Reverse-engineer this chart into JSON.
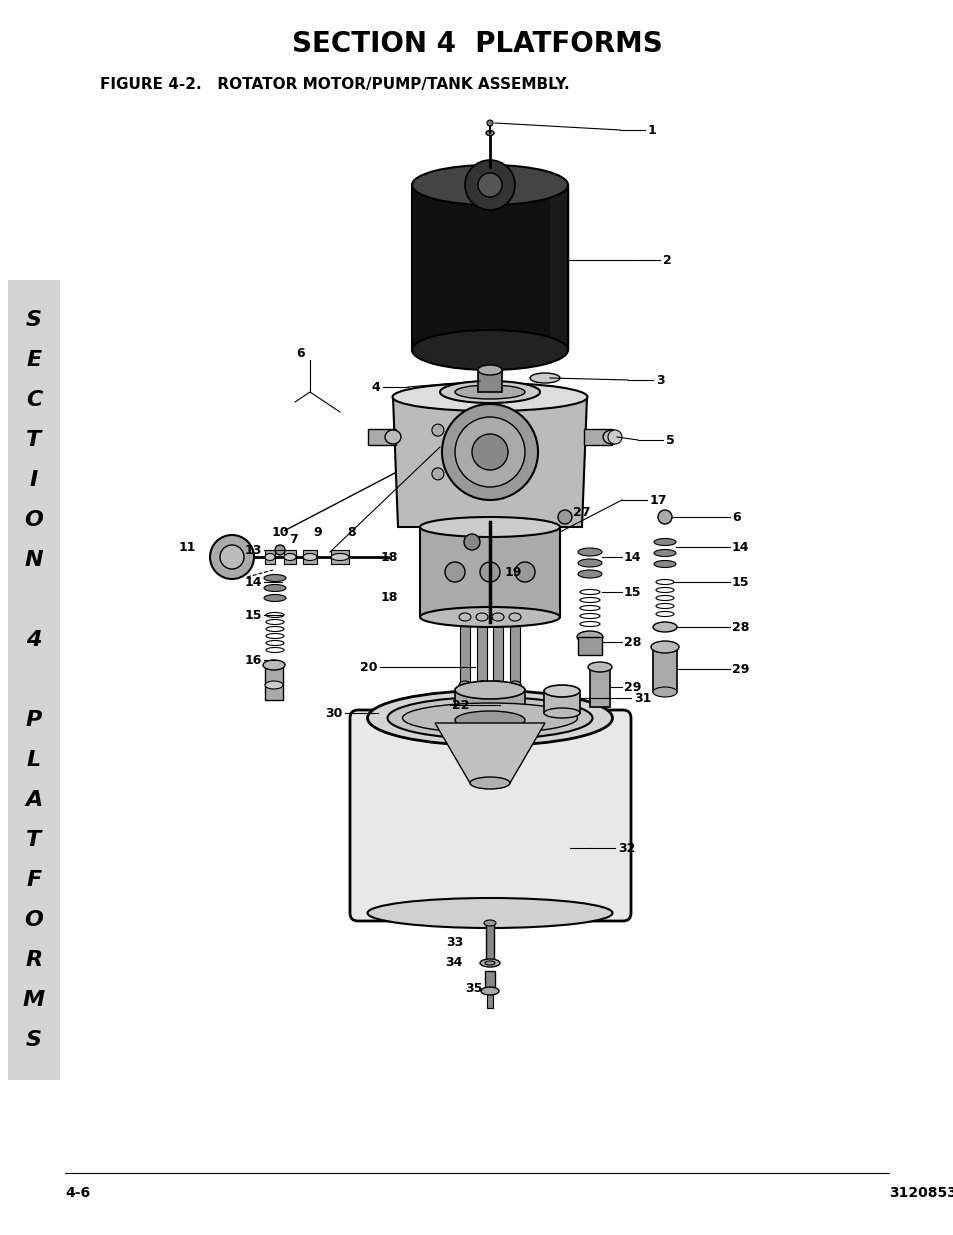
{
  "title": "SECTION 4  PLATFORMS",
  "figure_label": "FIGURE 4-2.   ROTATOR MOTOR/PUMP/TANK ASSEMBLY.",
  "page_left": "4-6",
  "page_right": "3120853",
  "sidebar_letters": [
    "S",
    "E",
    "C",
    "T",
    "I",
    "O",
    "N",
    "",
    "4",
    "",
    "P",
    "L",
    "A",
    "T",
    "F",
    "O",
    "R",
    "M",
    "S"
  ],
  "sidebar_bg": "#d4d4d4",
  "bg_color": "#ffffff",
  "title_fontsize": 20,
  "figure_label_fontsize": 11,
  "page_fontsize": 10,
  "sidebar_fontsize": 16,
  "label_fontsize": 9
}
